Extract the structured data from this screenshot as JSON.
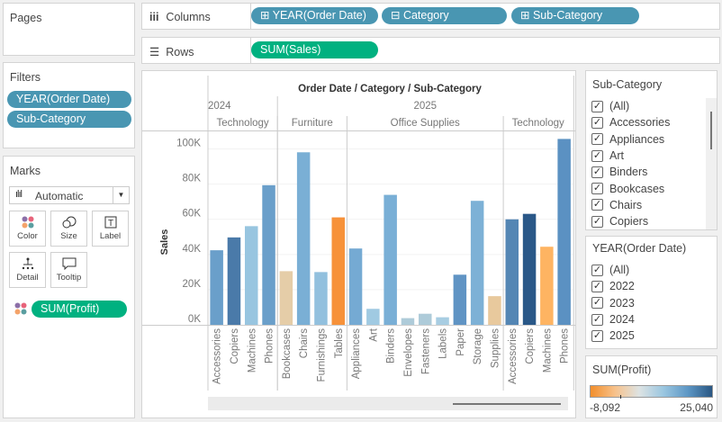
{
  "pages": {
    "title": "Pages"
  },
  "filters": {
    "title": "Filters",
    "items": [
      "YEAR(Order Date)",
      "Sub-Category"
    ]
  },
  "marks": {
    "title": "Marks",
    "type": "Automatic",
    "buttons": [
      {
        "label": "Color",
        "icon": "color-icon"
      },
      {
        "label": "Size",
        "icon": "size-icon"
      },
      {
        "label": "Label",
        "icon": "label-icon"
      },
      {
        "label": "Detail",
        "icon": "detail-icon"
      },
      {
        "label": "Tooltip",
        "icon": "tooltip-icon"
      }
    ],
    "color_field": "SUM(Profit)"
  },
  "columns": {
    "label": "Columns",
    "pills": [
      "⊞ YEAR(Order Date)",
      "⊟ Category",
      "⊞ Sub-Category"
    ]
  },
  "rows": {
    "label": "Rows",
    "pills": [
      "SUM(Sales)"
    ]
  },
  "subcat_filter": {
    "title": "Sub-Category",
    "items": [
      "(All)",
      "Accessories",
      "Appliances",
      "Art",
      "Binders",
      "Bookcases",
      "Chairs",
      "Copiers"
    ]
  },
  "year_filter": {
    "title": "YEAR(Order Date)",
    "items": [
      "(All)",
      "2022",
      "2023",
      "2024",
      "2025"
    ]
  },
  "legend": {
    "title": "SUM(Profit)",
    "min": "-8,092",
    "max": "25,040",
    "colors": [
      "#f28e2b",
      "#f7c18a",
      "#dde3e3",
      "#9ac6e0",
      "#5d97c5",
      "#2a5783"
    ]
  },
  "chart_data": {
    "type": "bar",
    "title": "Order Date / Category / Sub-Category",
    "ylabel": "Sales",
    "ylim": [
      0,
      110000
    ],
    "yticks": [
      "0K",
      "20K",
      "40K",
      "60K",
      "80K",
      "100K"
    ],
    "ytick_values": [
      0,
      20000,
      40000,
      60000,
      80000,
      100000
    ],
    "years": [
      {
        "label": "2024",
        "groups": 1
      },
      {
        "label": "2025",
        "groups": 3
      }
    ],
    "groups": [
      {
        "year": "2024",
        "category": "Technology",
        "bars": [
          {
            "sub": "Accessories",
            "value": 42400,
            "color": "#6a9fca"
          },
          {
            "sub": "Copiers",
            "value": 49700,
            "color": "#4a7aa9"
          },
          {
            "sub": "Machines",
            "value": 56100,
            "color": "#98c5e0"
          },
          {
            "sub": "Phones",
            "value": 79400,
            "color": "#6a9fca"
          }
        ]
      },
      {
        "year": "2025",
        "category": "Furniture",
        "bars": [
          {
            "sub": "Bookcases",
            "value": 30500,
            "color": "#e5cda8"
          },
          {
            "sub": "Chairs",
            "value": 98100,
            "color": "#7aafd5"
          },
          {
            "sub": "Furnishings",
            "value": 30000,
            "color": "#92c0de"
          },
          {
            "sub": "Tables",
            "value": 61100,
            "color": "#f7923a"
          }
        ]
      },
      {
        "year": "2025",
        "category": "Office Supplies",
        "bars": [
          {
            "sub": "Appliances",
            "value": 43400,
            "color": "#75aad3"
          },
          {
            "sub": "Art",
            "value": 9100,
            "color": "#a0cae2"
          },
          {
            "sub": "Binders",
            "value": 73900,
            "color": "#79afd6"
          },
          {
            "sub": "Envelopes",
            "value": 3800,
            "color": "#aecbd9"
          },
          {
            "sub": "Fasteners",
            "value": 6300,
            "color": "#aecbd9"
          },
          {
            "sub": "Labels",
            "value": 4300,
            "color": "#a8cde2"
          },
          {
            "sub": "Paper",
            "value": 28500,
            "color": "#6094c4"
          },
          {
            "sub": "Storage",
            "value": 70500,
            "color": "#7db1d6"
          },
          {
            "sub": "Supplies",
            "value": 16300,
            "color": "#e8c99d"
          }
        ]
      },
      {
        "year": "2025",
        "category": "Technology",
        "bars": [
          {
            "sub": "Accessories",
            "value": 60000,
            "color": "#5486b4"
          },
          {
            "sub": "Copiers",
            "value": 63100,
            "color": "#2a5888"
          },
          {
            "sub": "Machines",
            "value": 44400,
            "color": "#feb462"
          },
          {
            "sub": "Phones",
            "value": 105700,
            "color": "#5b91c2"
          }
        ]
      }
    ],
    "grid": true
  }
}
